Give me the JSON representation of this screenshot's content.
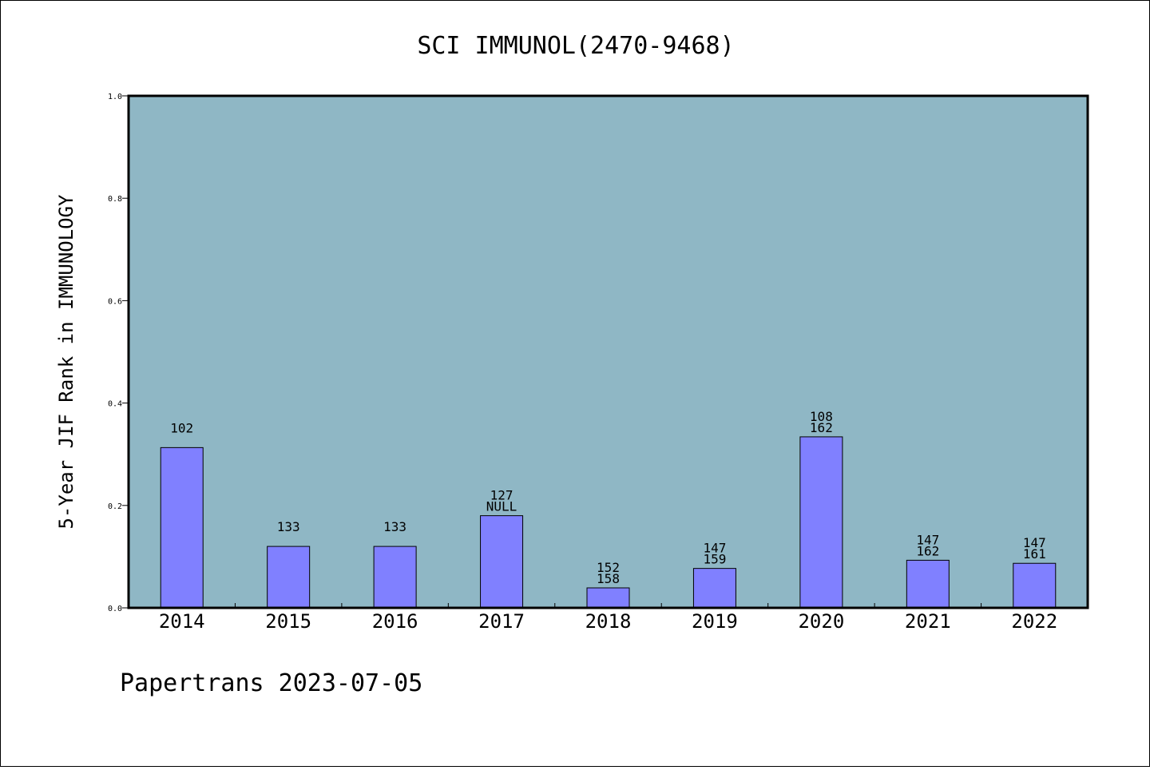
{
  "chart_data": {
    "type": "bar",
    "title": "SCI IMMUNOL(2470-9468)",
    "xlabel": "",
    "ylabel": "5-Year JIF Rank in IMMUNOLOGY",
    "ylim": [
      0.0,
      1.0
    ],
    "yticks": [
      "0.0",
      "0.2",
      "0.4",
      "0.6",
      "0.8",
      "1.0"
    ],
    "categories": [
      "2014",
      "2015",
      "2016",
      "2017",
      "2018",
      "2019",
      "2020",
      "2021",
      "2022"
    ],
    "values": [
      0.313,
      0.12,
      0.12,
      0.18,
      0.039,
      0.077,
      0.334,
      0.093,
      0.087
    ],
    "bar_labels": [
      [
        "102"
      ],
      [
        "133"
      ],
      [
        "133"
      ],
      [
        "127",
        "NULL"
      ],
      [
        "152",
        "158"
      ],
      [
        "147",
        "159"
      ],
      [
        "108",
        "162"
      ],
      [
        "147",
        "162"
      ],
      [
        "147",
        "161"
      ]
    ],
    "grid": false,
    "colors": {
      "plot_background": "#8fb7c5",
      "bar_fill": "#8080ff",
      "bar_stroke": "#000000"
    }
  },
  "footer": {
    "text": "Papertrans 2023-07-05"
  }
}
